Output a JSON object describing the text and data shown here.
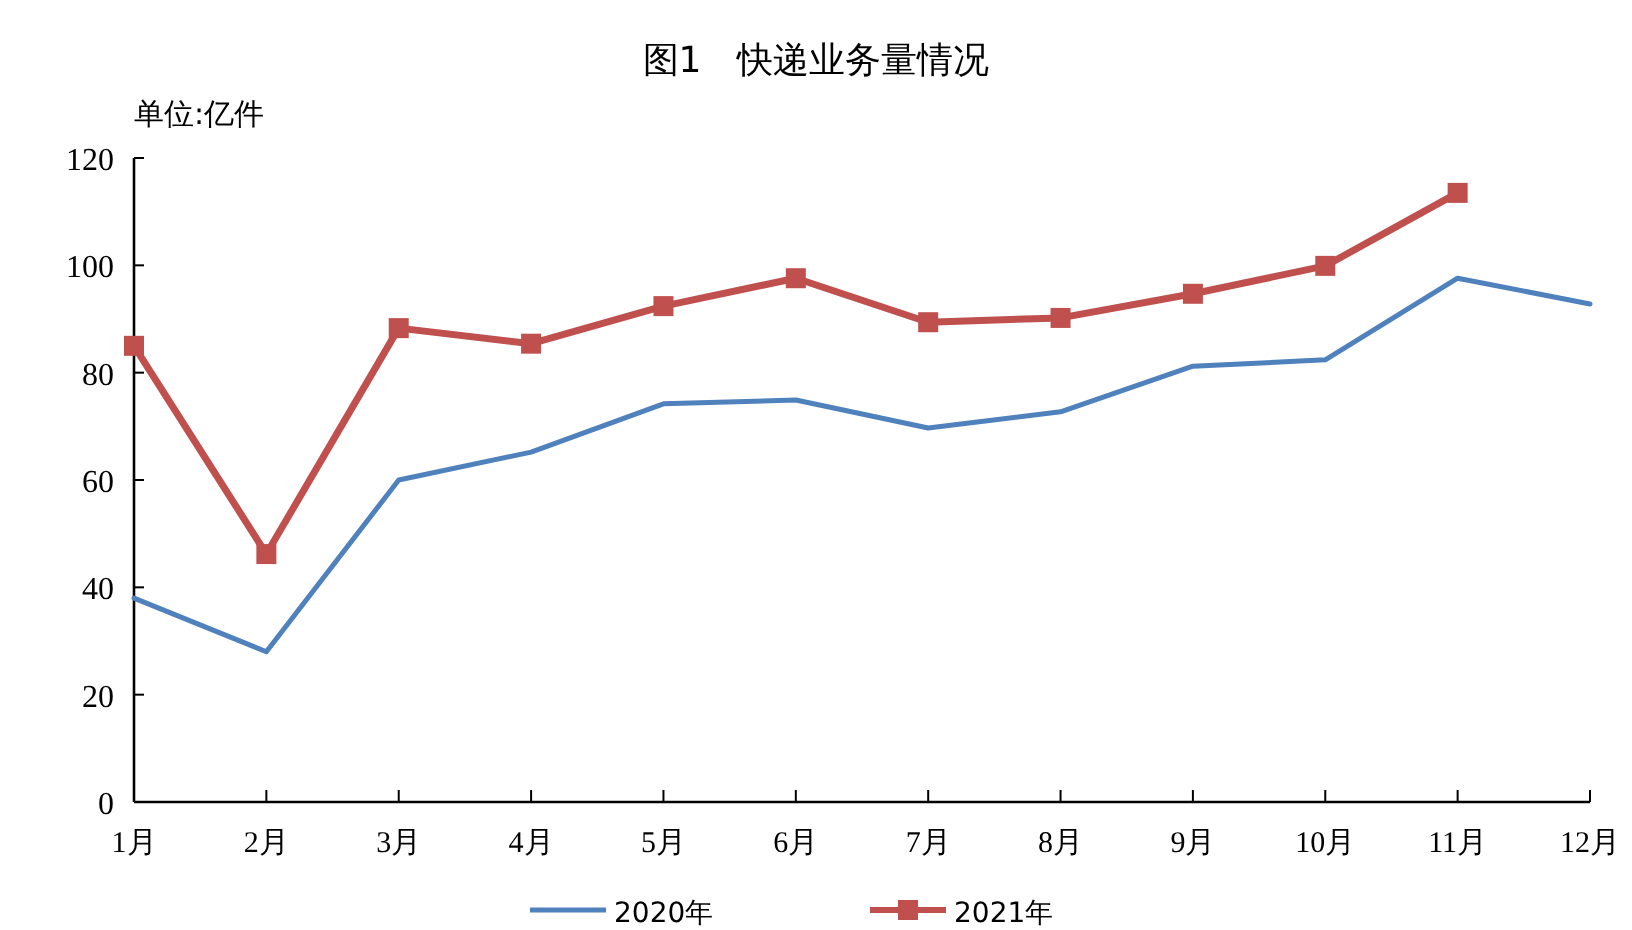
{
  "chart_data": {
    "type": "line",
    "title": "图1　快递业务量情况",
    "ylabel": "单位:亿件",
    "categories": [
      "1月",
      "2月",
      "3月",
      "4月",
      "5月",
      "6月",
      "7月",
      "8月",
      "9月",
      "10月",
      "11月",
      "12月"
    ],
    "series": [
      {
        "name": "2020年",
        "color": "#4f81bd",
        "marker": "none",
        "values": [
          38,
          28,
          60,
          65.2,
          74.2,
          74.9,
          69.7,
          72.7,
          81.2,
          82.4,
          97.6,
          92.8
        ]
      },
      {
        "name": "2021年",
        "color": "#c0504d",
        "marker": "square",
        "values": [
          85,
          46.2,
          88.3,
          85.4,
          92.4,
          97.6,
          89.4,
          90.2,
          94.7,
          99.9,
          113.5,
          null
        ]
      }
    ],
    "ylim": [
      0,
      120
    ],
    "yticks": [
      0,
      20,
      40,
      60,
      80,
      100,
      120
    ],
    "grid": false,
    "legend": "bottom"
  }
}
